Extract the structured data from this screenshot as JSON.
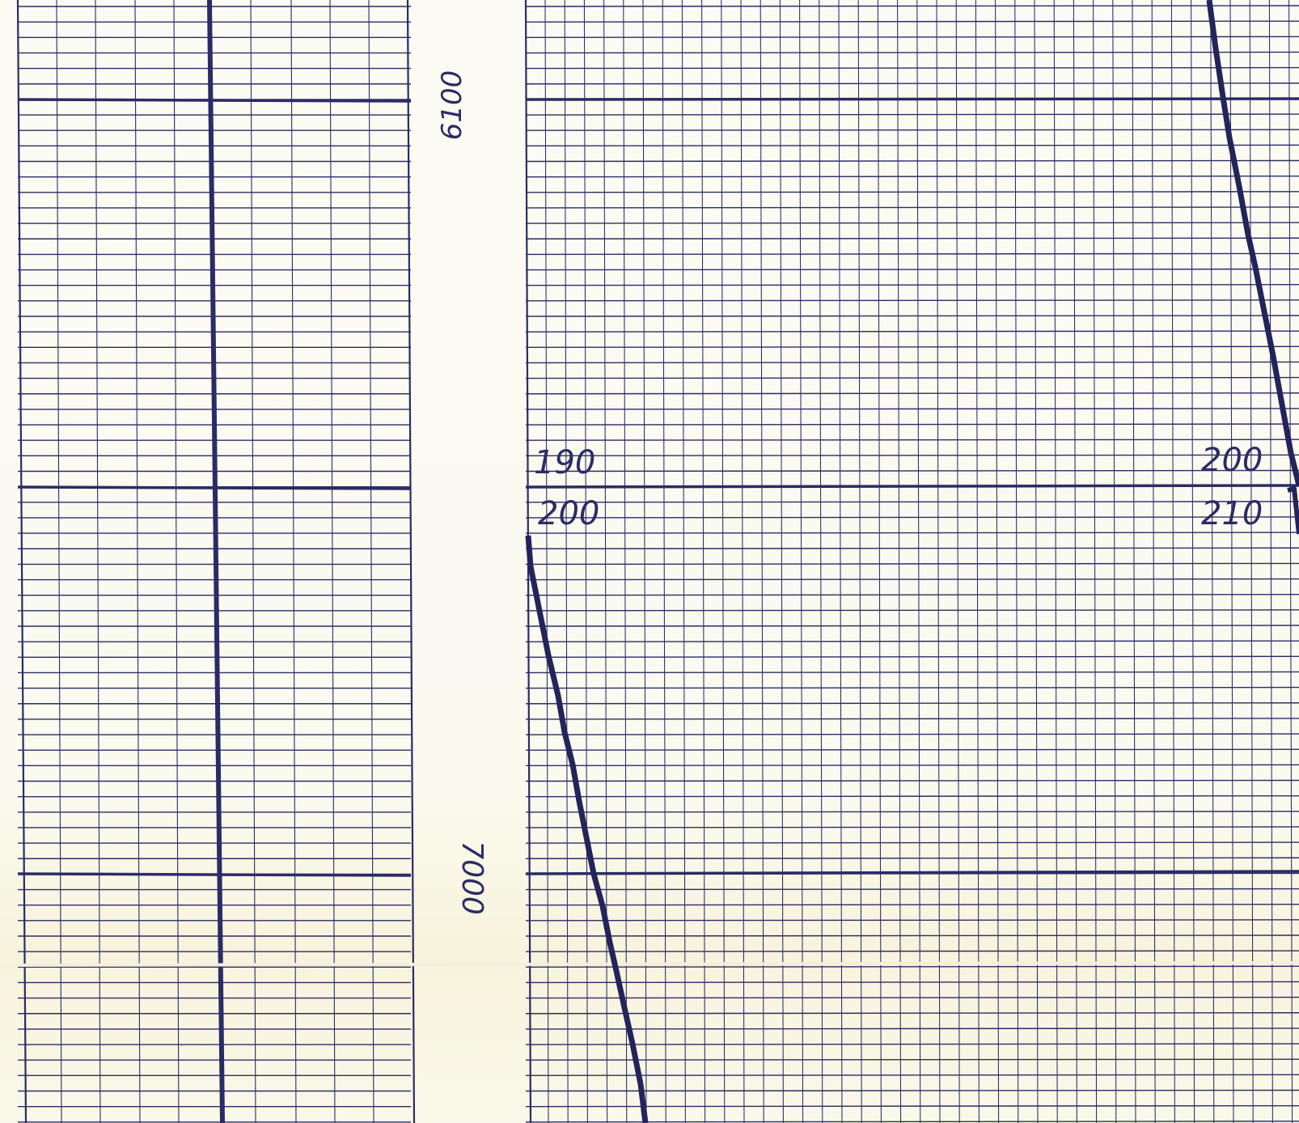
{
  "document": {
    "type": "strip-chart well log",
    "annotations": {
      "left_strip_depth_top": "6100",
      "left_strip_depth_bottom": "7000",
      "track_top_left_scale": "190",
      "track_bottom_left_scale": "200",
      "track_top_right_scale": "200",
      "track_bottom_right_scale": "210"
    },
    "colors": {
      "paper": "#fbfaf0",
      "grid_ink": "#2a2c66",
      "trace_ink": "#22245a"
    }
  }
}
